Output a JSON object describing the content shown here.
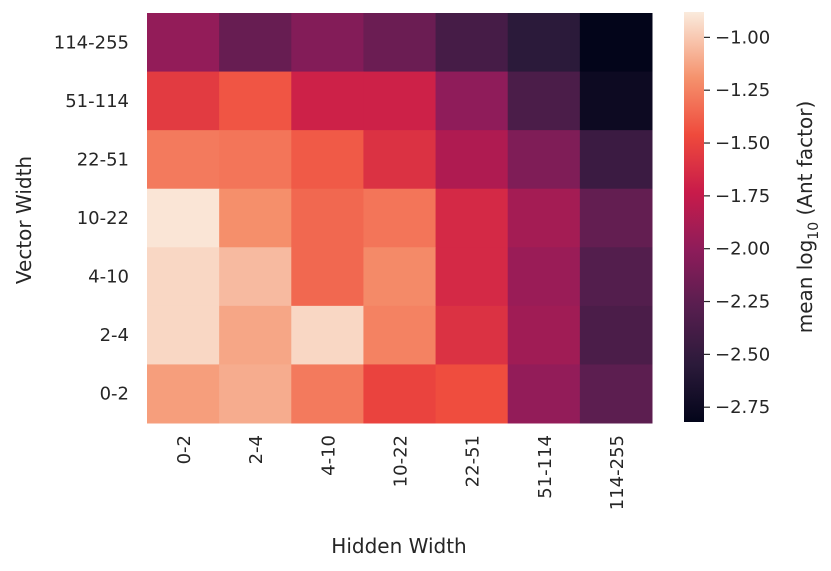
{
  "chart_data": {
    "type": "heatmap",
    "xlabel": "Hidden Width",
    "ylabel": "Vector Width",
    "x_categories": [
      "0-2",
      "2-4",
      "4-10",
      "10-22",
      "22-51",
      "51-114",
      "114-255"
    ],
    "y_categories": [
      "114-255",
      "51-114",
      "22-51",
      "10-22",
      "4-10",
      "2-4",
      "0-2"
    ],
    "values": [
      [
        -1.98,
        -2.2,
        -2.06,
        -2.18,
        -2.38,
        -2.55,
        -2.82
      ],
      [
        -1.55,
        -1.42,
        -1.7,
        -1.7,
        -2.0,
        -2.35,
        -2.75
      ],
      [
        -1.28,
        -1.3,
        -1.4,
        -1.6,
        -1.85,
        -2.08,
        -2.45
      ],
      [
        -0.9,
        -1.2,
        -1.35,
        -1.3,
        -1.65,
        -1.9,
        -2.22
      ],
      [
        -0.95,
        -1.05,
        -1.35,
        -1.22,
        -1.65,
        -1.95,
        -2.3
      ],
      [
        -0.95,
        -1.12,
        -0.95,
        -1.25,
        -1.6,
        -1.92,
        -2.35
      ],
      [
        -1.15,
        -1.1,
        -1.28,
        -1.5,
        -1.45,
        -1.98,
        -2.25
      ]
    ],
    "colorbar": {
      "label_prefix": "mean log",
      "label_subscript": "10",
      "label_suffix": " (Ant factor)",
      "ticks": [
        "−1.00",
        "−1.25",
        "−1.50",
        "−1.75",
        "−2.00",
        "−2.25",
        "−2.50",
        "−2.75"
      ],
      "tick_values": [
        -1.0,
        -1.25,
        -1.5,
        -1.75,
        -2.0,
        -2.25,
        -2.5,
        -2.75
      ],
      "range": [
        -2.82,
        -0.88
      ],
      "colormap": "rocket"
    }
  }
}
